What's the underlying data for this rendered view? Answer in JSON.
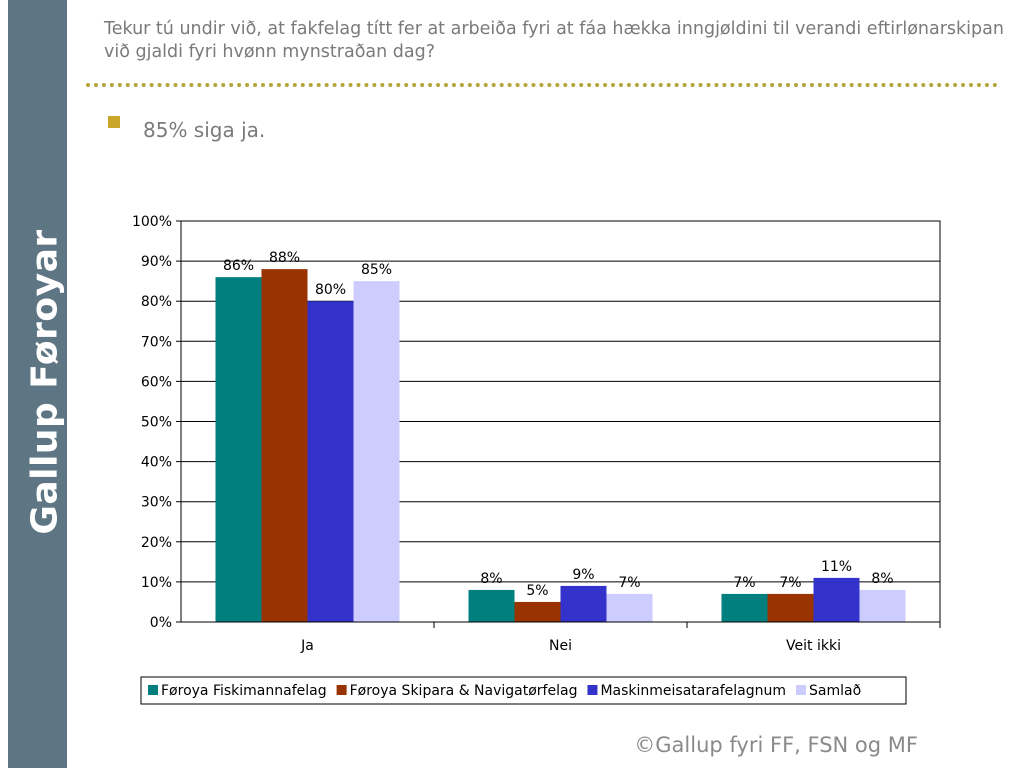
{
  "brand": "Gallup Føroyar",
  "question": "Tekur tú undir við, at fakfelag títt fer at arbeiða fyri at fáa hækka inngjøldini til verandi eftirlønarskipan við gjaldi fyri hvønn mynstraðan dag?",
  "bullet": "85% siga ja.",
  "footer": "©Gallup fyri FF, FSN og MF",
  "colors": {
    "sidebar": "#5e7683",
    "divider": "#b8a336",
    "bullet": "#c9a62a"
  },
  "chart_data": {
    "type": "bar",
    "categories": [
      "Ja",
      "Nei",
      "Veit ikki"
    ],
    "series": [
      {
        "name": "Føroya Fiskimannafelag",
        "color": "#007f7f",
        "values": [
          86,
          8,
          7
        ],
        "labels": [
          "86%",
          "8%",
          "7%"
        ]
      },
      {
        "name": "Føroya Skipara & Navigatørfelag",
        "color": "#993300",
        "values": [
          88,
          5,
          7
        ],
        "labels": [
          "88%",
          "5%",
          "7%"
        ]
      },
      {
        "name": "Maskinmeisatarafelagnum",
        "color": "#3333cc",
        "values": [
          80,
          9,
          11
        ],
        "labels": [
          "80%",
          "9%",
          "11%"
        ]
      },
      {
        "name": "Samlað",
        "color": "#ccccff",
        "values": [
          85,
          7,
          8
        ],
        "labels": [
          "85%",
          "7%",
          "8%"
        ]
      }
    ],
    "ylim": [
      0,
      100
    ],
    "yticks": [
      "0%",
      "10%",
      "20%",
      "30%",
      "40%",
      "50%",
      "60%",
      "70%",
      "80%",
      "90%",
      "100%"
    ],
    "grid": true,
    "legend": "bottom"
  }
}
